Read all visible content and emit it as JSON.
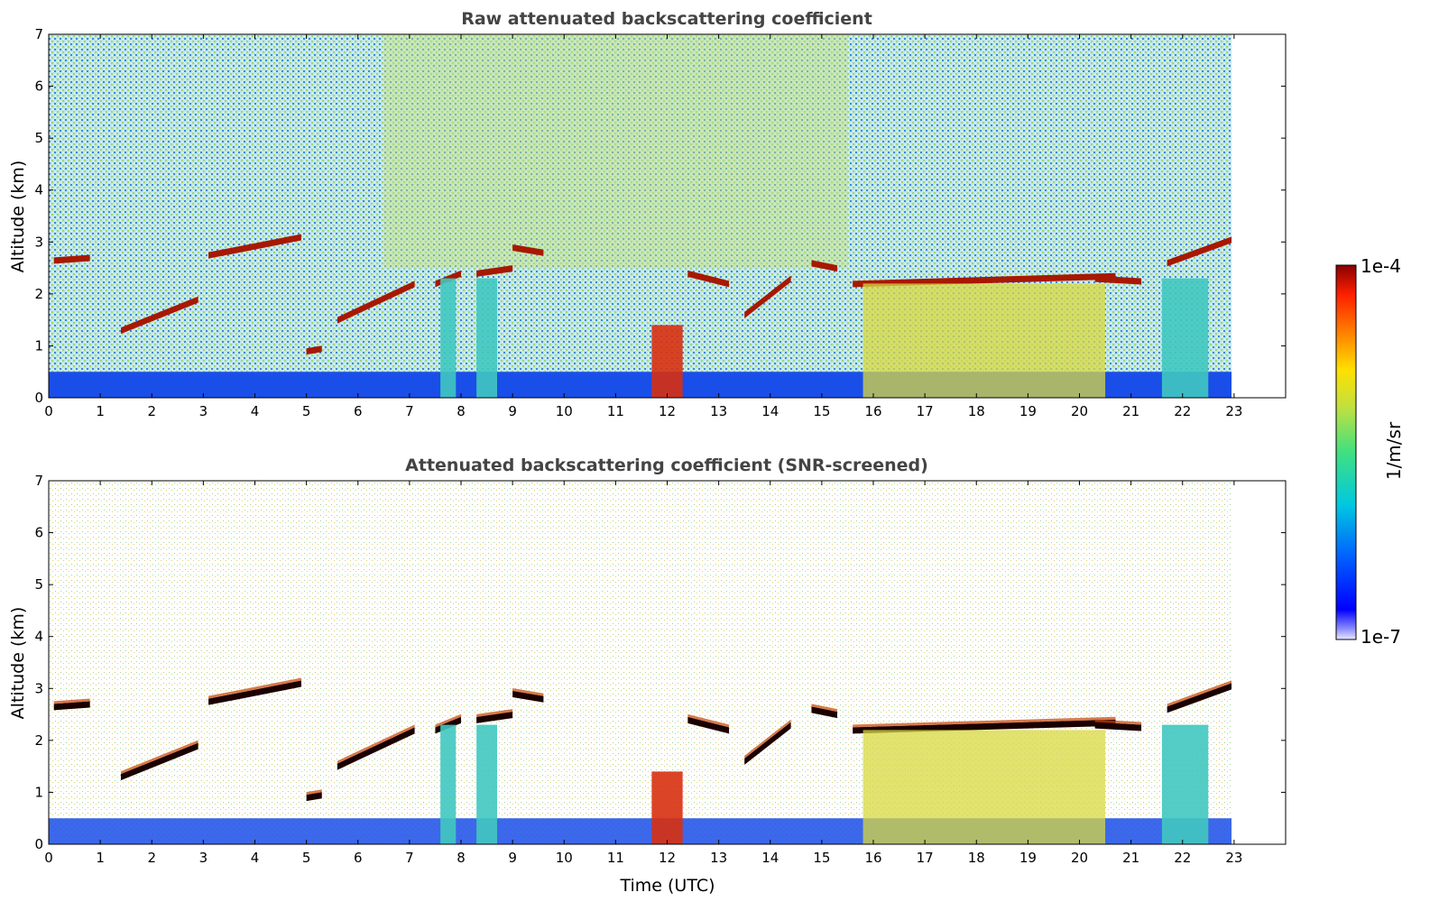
{
  "chart_data": [
    {
      "type": "heatmap",
      "title": "Raw attenuated backscattering coefficient",
      "xlabel": "",
      "ylabel": "Altitude (km)",
      "xlim": [
        0,
        24
      ],
      "ylim": [
        0,
        7
      ],
      "xticks": [
        "0",
        "1",
        "2",
        "3",
        "4",
        "5",
        "6",
        "7",
        "8",
        "9",
        "10",
        "11",
        "12",
        "13",
        "14",
        "15",
        "16",
        "17",
        "18",
        "19",
        "20",
        "21",
        "22",
        "23"
      ],
      "yticks": [
        "0",
        "1",
        "2",
        "3",
        "4",
        "5",
        "6",
        "7"
      ],
      "data_extent_x": [
        0,
        22.95
      ],
      "cloud_layers": [
        {
          "x": [
            0.1,
            0.8
          ],
          "y": [
            2.65,
            2.7
          ]
        },
        {
          "x": [
            1.4,
            2.9
          ],
          "y": [
            1.3,
            1.9
          ]
        },
        {
          "x": [
            3.1,
            4.9
          ],
          "y": [
            2.75,
            3.1
          ]
        },
        {
          "x": [
            5.0,
            5.3
          ],
          "y": [
            0.9,
            0.95
          ]
        },
        {
          "x": [
            5.6,
            7.1
          ],
          "y": [
            1.5,
            2.2
          ]
        },
        {
          "x": [
            7.5,
            8.0
          ],
          "y": [
            2.2,
            2.4
          ]
        },
        {
          "x": [
            8.3,
            9.0
          ],
          "y": [
            2.4,
            2.5
          ]
        },
        {
          "x": [
            9.0,
            9.6
          ],
          "y": [
            2.9,
            2.8
          ]
        },
        {
          "x": [
            12.4,
            13.2
          ],
          "y": [
            2.4,
            2.2
          ]
        },
        {
          "x": [
            13.5,
            14.4
          ],
          "y": [
            1.6,
            2.3
          ]
        },
        {
          "x": [
            14.8,
            15.3
          ],
          "y": [
            2.6,
            2.5
          ]
        },
        {
          "x": [
            15.6,
            20.7
          ],
          "y": [
            2.2,
            2.35
          ]
        },
        {
          "x": [
            20.3,
            21.2
          ],
          "y": [
            2.3,
            2.25
          ]
        },
        {
          "x": [
            21.7,
            22.95
          ],
          "y": [
            2.6,
            3.05
          ]
        }
      ],
      "dense_columns": [
        {
          "x": [
            11.7,
            12.3
          ],
          "level": "high"
        },
        {
          "x": [
            7.6,
            7.9
          ],
          "level": "medium"
        },
        {
          "x": [
            8.3,
            8.7
          ],
          "level": "medium"
        },
        {
          "x": [
            15.8,
            20.5
          ],
          "level": "medium-high"
        },
        {
          "x": [
            21.6,
            22.5
          ],
          "level": "medium"
        }
      ]
    },
    {
      "type": "heatmap",
      "title": "Attenuated backscattering coefficient (SNR-screened)",
      "xlabel": "Time (UTC)",
      "ylabel": "Altitude (km)",
      "xlim": [
        0,
        24
      ],
      "ylim": [
        0,
        7
      ],
      "xticks": [
        "0",
        "1",
        "2",
        "3",
        "4",
        "5",
        "6",
        "7",
        "8",
        "9",
        "10",
        "11",
        "12",
        "13",
        "14",
        "15",
        "16",
        "17",
        "18",
        "19",
        "20",
        "21",
        "22",
        "23"
      ],
      "yticks": [
        "0",
        "1",
        "2",
        "3",
        "4",
        "5",
        "6",
        "7"
      ],
      "data_extent_x": [
        0,
        22.95
      ]
    }
  ],
  "colorbar": {
    "label": "1/m/sr",
    "max_label": "1e-4",
    "min_label": "1e-7",
    "colormap": [
      "#e8e8ff",
      "#0000ff",
      "#0080ff",
      "#00d0d0",
      "#40e080",
      "#c0e040",
      "#ffe000",
      "#ff8000",
      "#ff2000",
      "#b00000",
      "#6a0000"
    ]
  }
}
